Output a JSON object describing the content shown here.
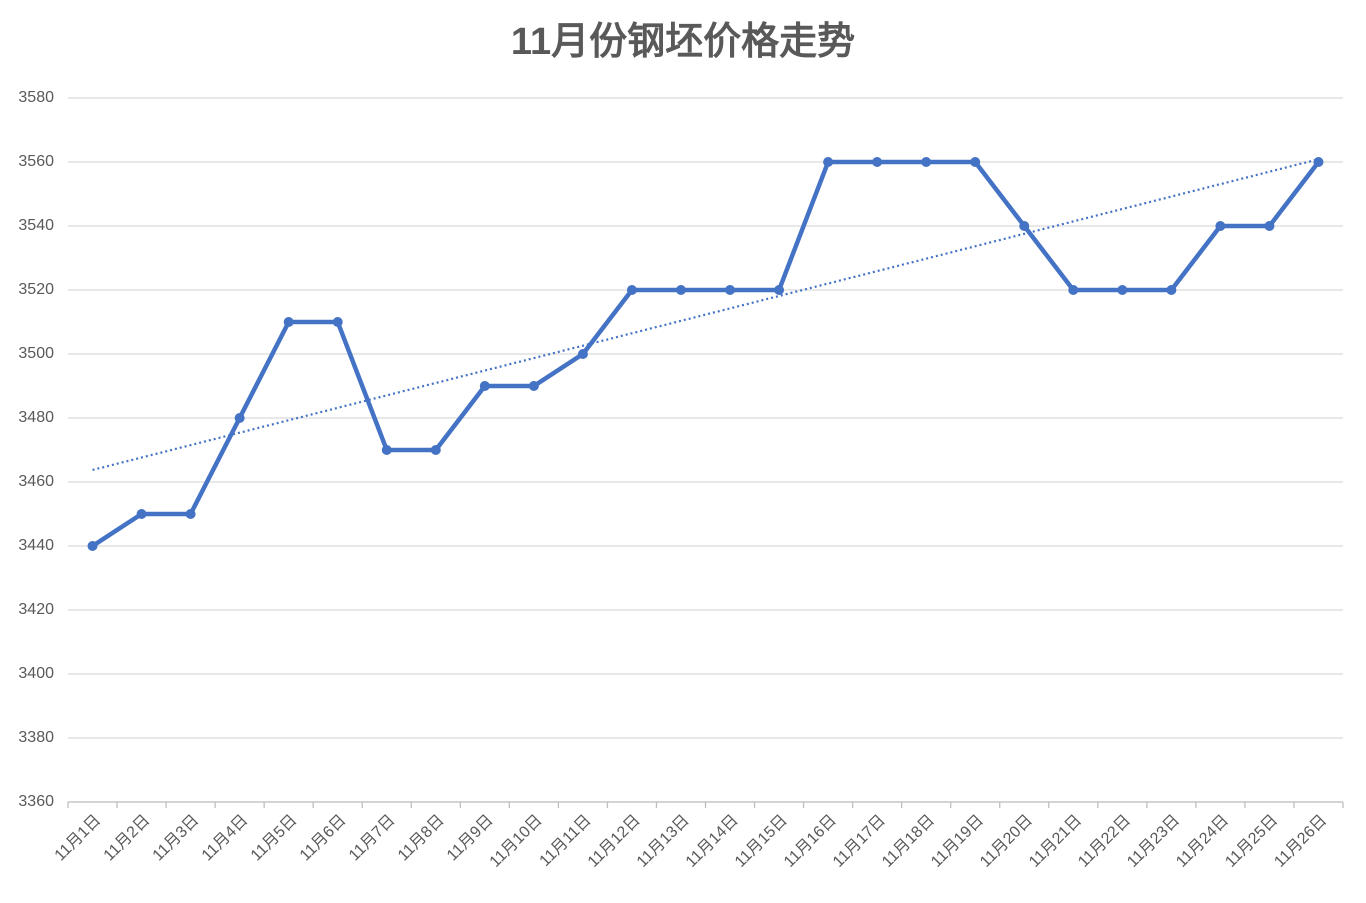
{
  "chart_data": {
    "type": "line",
    "title": "11月份钢坯价格走势",
    "categories": [
      "11月1日",
      "11月2日",
      "11月3日",
      "11月4日",
      "11月5日",
      "11月6日",
      "11月7日",
      "11月8日",
      "11月9日",
      "11月10日",
      "11月11日",
      "11月12日",
      "11月13日",
      "11月14日",
      "11月15日",
      "11月16日",
      "11月17日",
      "11月18日",
      "11月19日",
      "11月20日",
      "11月21日",
      "11月22日",
      "11月23日",
      "11月24日",
      "11月25日",
      "11月26日"
    ],
    "values": [
      3440,
      3450,
      3450,
      3480,
      3510,
      3510,
      3470,
      3470,
      3490,
      3490,
      3500,
      3520,
      3520,
      3520,
      3520,
      3560,
      3560,
      3560,
      3560,
      3540,
      3520,
      3520,
      3520,
      3540,
      3540,
      3560
    ],
    "color": "#4472c4",
    "trendline": "linear",
    "ylim": [
      3360,
      3580
    ],
    "yticks": [
      3360,
      3380,
      3400,
      3420,
      3440,
      3460,
      3480,
      3500,
      3520,
      3540,
      3560,
      3580
    ],
    "grid": true
  }
}
